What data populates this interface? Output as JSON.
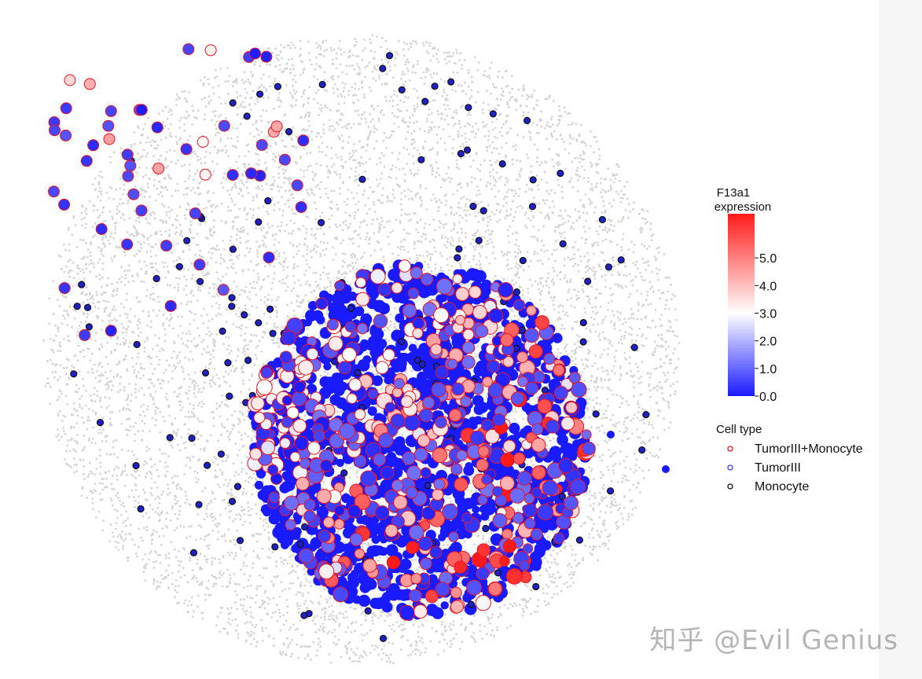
{
  "chart_data": {
    "type": "scatter",
    "title": "",
    "xlabel": "",
    "ylabel": "",
    "background_points_color": "#d4d4d4",
    "color_scale": {
      "title_line1": "F13a1",
      "title_line2": "expression",
      "ticks": [
        "0.0",
        "1.0",
        "2.0",
        "3.0",
        "4.0",
        "5.0"
      ],
      "tick_values": [
        0,
        1,
        2,
        3,
        4,
        5
      ],
      "range": [
        0,
        6.6
      ],
      "low_color": "#1a1aff",
      "mid_color": "#ffffff",
      "mid_value": 3.0,
      "high_color": "#ff1a1a"
    },
    "cell_type_legend": {
      "title": "Cell type",
      "entries": [
        {
          "label": "TumorIII+Monocyte",
          "edge_color": "#e8141e"
        },
        {
          "label": "TumorIII",
          "edge_color": "#3b3bff"
        },
        {
          "label": "Monocyte",
          "edge_color": "#111111"
        }
      ]
    },
    "grid": false,
    "legend_placement": "right"
  },
  "watermark": "知乎 @Evil Genius"
}
